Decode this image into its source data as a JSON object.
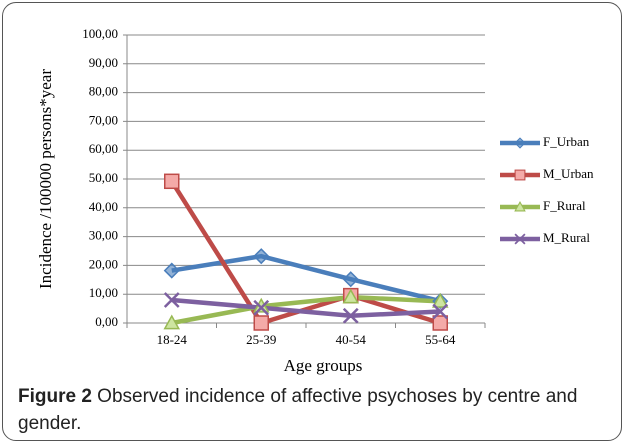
{
  "chart_data": {
    "type": "line",
    "categories": [
      "18-24",
      "25-39",
      "40-54",
      "55-64"
    ],
    "series": [
      {
        "name": "F_Urban",
        "color": "#4a7ebb",
        "marker": "diamond",
        "values": [
          18.2,
          23.2,
          15.2,
          7.6
        ]
      },
      {
        "name": "M_Urban",
        "color": "#be4b48",
        "marker": "square",
        "values": [
          49.2,
          0,
          9.5,
          0
        ]
      },
      {
        "name": "F_Rural",
        "color": "#98b954",
        "marker": "triangle",
        "values": [
          0,
          5.8,
          9.0,
          7.5
        ]
      },
      {
        "name": "M_Rural",
        "color": "#7d60a0",
        "marker": "x",
        "values": [
          8.0,
          5.3,
          2.5,
          4.0
        ]
      }
    ],
    "ylim": [
      0,
      100
    ],
    "yticks": [
      {
        "value": 0,
        "label": "0,00"
      },
      {
        "value": 10,
        "label": "10,00"
      },
      {
        "value": 20,
        "label": "20,00"
      },
      {
        "value": 30,
        "label": "30,00"
      },
      {
        "value": 40,
        "label": "40,00"
      },
      {
        "value": 50,
        "label": "50,00"
      },
      {
        "value": 60,
        "label": "60,00"
      },
      {
        "value": 70,
        "label": "70,00"
      },
      {
        "value": 80,
        "label": "80,00"
      },
      {
        "value": 90,
        "label": "90,00"
      },
      {
        "value": 100,
        "label": "100,00"
      }
    ],
    "grid": true,
    "legend": "right",
    "xlabel": "Age groups",
    "ylabel": "Incidence /100000 persons*year",
    "caption": {
      "label": "Figure 2",
      "text": " Observed incidence of affective psychoses by centre and gender."
    }
  }
}
